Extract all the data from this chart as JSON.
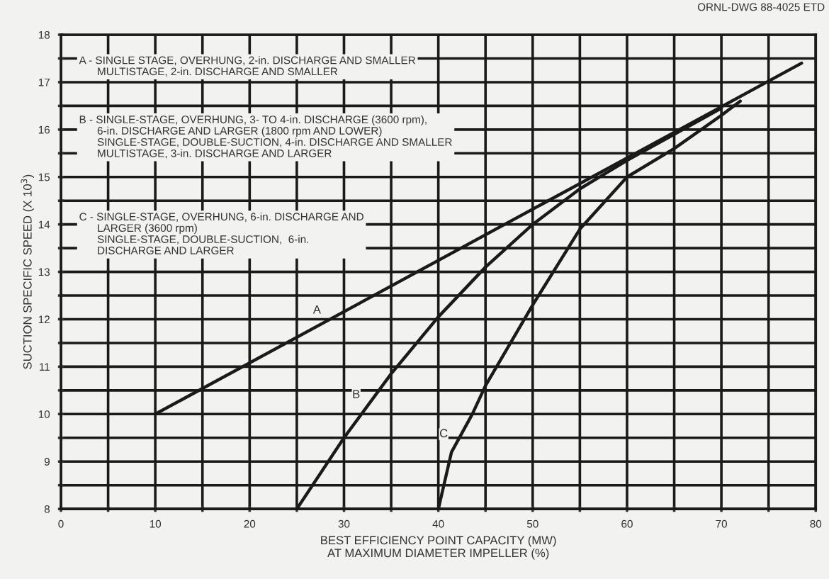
{
  "chart_data": {
    "type": "line",
    "xlabel": "BEST EFFICIENCY POINT CAPACITY (MW)\nAT MAXIMUM DIAMETER IMPELLER (%)",
    "ylabel": "SUCTION SPECIFIC SPEED (X 10$^{3}$)",
    "series": [
      {
        "name": "A",
        "color": "#1a1a1a",
        "x": [
          10,
          78.5
        ],
        "values": [
          10,
          17.4
        ]
      },
      {
        "name": "B",
        "color": "#1a1a1a",
        "x": [
          25,
          30,
          35,
          40,
          45,
          50,
          55,
          60,
          65,
          70
        ],
        "values": [
          8,
          9.5,
          10.85,
          12.05,
          13.1,
          14.0,
          14.75,
          15.35,
          15.9,
          16.45
        ]
      },
      {
        "name": "C",
        "color": "#1a1a1a",
        "x": [
          40,
          41.4,
          43.6,
          45,
          50,
          55,
          60,
          65,
          70,
          72
        ],
        "values": [
          8,
          9.2,
          10,
          10.6,
          12.3,
          13.9,
          15.0,
          15.6,
          16.3,
          16.6
        ]
      }
    ],
    "xlim": [
      0,
      80
    ],
    "xticks": [
      0,
      {
        "value": 5,
        "label": null
      },
      10,
      {
        "value": 15,
        "label": null
      },
      20,
      {
        "value": 25,
        "label": null
      },
      30,
      {
        "value": 35,
        "label": null
      },
      40,
      {
        "value": 45,
        "label": null
      },
      50,
      {
        "value": 55,
        "label": null
      },
      60,
      {
        "value": 65,
        "label": null
      },
      70,
      {
        "value": 75,
        "label": null
      },
      80
    ],
    "ylim": [
      8,
      18
    ],
    "yticks": [
      8,
      {
        "value": 8.5,
        "label": null
      },
      9,
      {
        "value": 9.5,
        "label": null
      },
      10,
      {
        "value": 10.5,
        "label": null
      },
      11,
      {
        "value": 11.5,
        "label": null
      },
      12,
      {
        "value": 12.5,
        "label": null
      },
      13,
      {
        "value": 13.5,
        "label": null
      },
      14,
      {
        "value": 14.5,
        "label": null
      },
      15,
      {
        "value": 15.5,
        "label": null
      },
      16,
      {
        "value": 16.5,
        "label": null
      },
      17,
      {
        "value": 17.5,
        "label": null
      },
      18
    ],
    "grid": true,
    "legend": false,
    "marker": "none",
    "line_style": "solid",
    "annotations": [
      "ORNL-DWG 88-4025 ETD",
      "A - SINGLE STAGE, OVERHUNG, 2-in. DISCHARGE AND SMALLER\n      MULTISTAGE, 2-in. DISCHARGE AND SMALLER",
      "B - SINGLE-STAGE, OVERHUNG, 3- TO 4-in. DISCHARGE (3600 rpm),\n      6-in. DISCHARGE AND LARGER (1800 rpm AND LOWER)\n      SINGLE-STAGE, DOUBLE-SUCTION, 4-in. DISCHARGE AND SMALLER\n      MULTISTAGE, 3-in. DISCHARGE AND LARGER",
      "C - SINGLE-STAGE, OVERHUNG, 6-in. DISCHARGE AND\n      LARGER (3600 rpm)\n      SINGLE-STAGE, DOUBLE-SUCTION,  6-in.\n      DISCHARGE AND LARGER"
    ]
  }
}
